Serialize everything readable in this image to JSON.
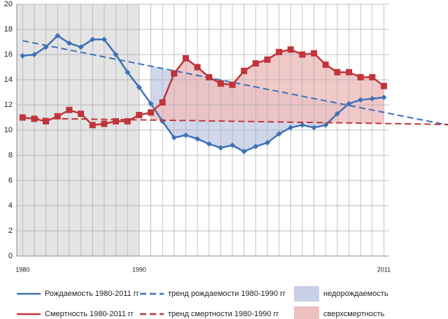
{
  "chart_data": {
    "type": "line",
    "x": [
      1980,
      1981,
      1982,
      1983,
      1984,
      1985,
      1986,
      1987,
      1988,
      1989,
      1990,
      1991,
      1992,
      1993,
      1994,
      1995,
      1996,
      1997,
      1998,
      1999,
      2000,
      2001,
      2002,
      2003,
      2004,
      2005,
      2006,
      2007,
      2008,
      2009,
      2010,
      2011
    ],
    "xlim": [
      1979.5,
      2016.5
    ],
    "xticks": [
      1980,
      1990,
      2011
    ],
    "ylim": [
      0,
      20
    ],
    "yticks": [
      0,
      2,
      4,
      6,
      8,
      10,
      12,
      14,
      16,
      18,
      20
    ],
    "grid": true,
    "highlight": [
      1979.5,
      1990
    ],
    "highlight_color": "#e4e4e4",
    "series": [
      {
        "name": "Рождаемость 1980-2011 гг",
        "color": "#3f72b6",
        "marker": "diamond",
        "values": [
          15.9,
          16.0,
          16.6,
          17.5,
          16.9,
          16.6,
          17.2,
          17.2,
          16.0,
          14.6,
          13.4,
          12.1,
          10.7,
          9.4,
          9.6,
          9.3,
          8.9,
          8.6,
          8.8,
          8.3,
          8.7,
          9.0,
          9.7,
          10.2,
          10.4,
          10.2,
          10.4,
          11.3,
          12.1,
          12.4,
          12.5,
          12.6
        ]
      },
      {
        "name": "тренд рождаемости 1980-1990 гг",
        "color": "#3f72b6",
        "dashed": true,
        "x": [
          1980,
          2016.5
        ],
        "values": [
          17.1,
          10.4
        ]
      },
      {
        "name": "Смертность 1980-2011 гг",
        "color": "#c0343a",
        "marker": "square",
        "values": [
          11.0,
          10.9,
          10.7,
          11.1,
          11.6,
          11.3,
          10.4,
          10.5,
          10.7,
          10.7,
          11.2,
          11.4,
          12.2,
          14.5,
          15.7,
          15.0,
          14.2,
          13.7,
          13.6,
          14.7,
          15.3,
          15.6,
          16.2,
          16.4,
          16.0,
          16.1,
          15.2,
          14.6,
          14.6,
          14.2,
          14.2,
          13.5
        ]
      },
      {
        "name": "тренд смертности 1980-1990 гг",
        "color": "#c0343a",
        "dashed": true,
        "x": [
          1980,
          2016.5
        ],
        "values": [
          10.95,
          10.45
        ]
      }
    ],
    "areas": [
      {
        "name": "недорождаемость",
        "color": "#c8d0e8",
        "between": [
          1,
          0
        ],
        "from": 1991,
        "to": 2008
      },
      {
        "name": "сверхсмертность",
        "color": "#efc0c0",
        "between": [
          2,
          3
        ],
        "from": 1991,
        "to": 2011
      }
    ]
  }
}
